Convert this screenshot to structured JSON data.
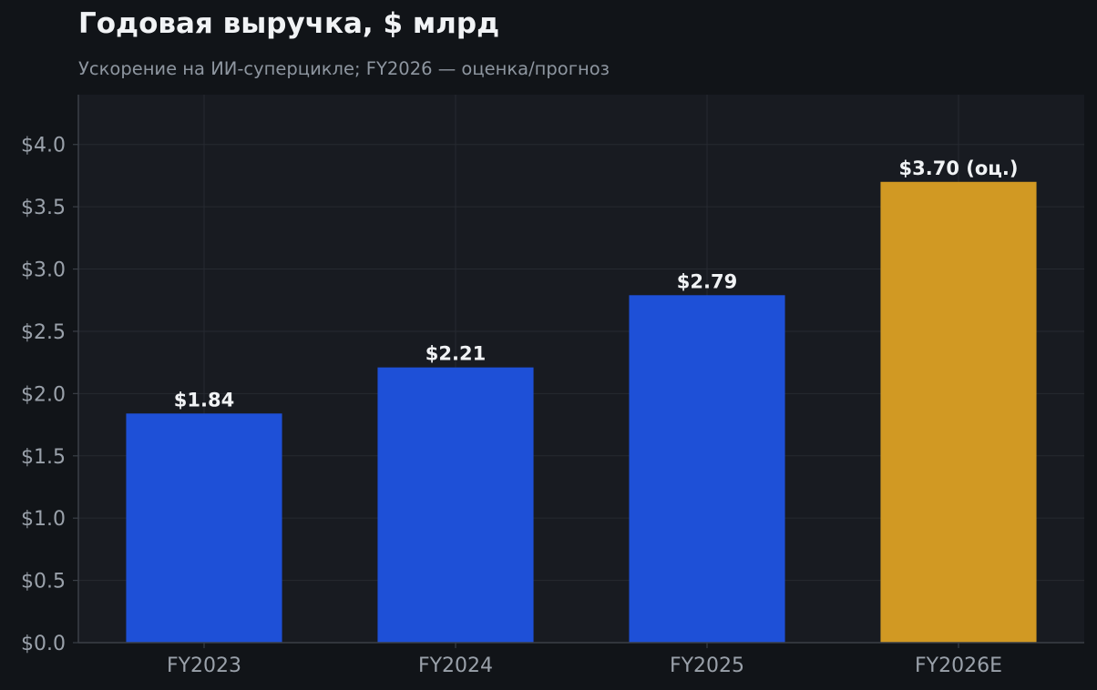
{
  "chart_data": {
    "type": "bar",
    "title": "Годовая выручка, $ млрд",
    "subtitle": "Ускорение на ИИ-суперцикле; FY2026 — оценка/прогноз",
    "xlabel": "",
    "ylabel": "",
    "categories": [
      "FY2023",
      "FY2024",
      "FY2025",
      "FY2026E"
    ],
    "values": [
      1.84,
      2.21,
      2.79,
      3.7
    ],
    "data_labels": [
      "$1.84",
      "$2.21",
      "$2.79",
      "$3.70 (оц.)"
    ],
    "bar_colors": [
      "#1e50d7",
      "#1e50d7",
      "#1e50d7",
      "#d19923"
    ],
    "ylim": [
      0,
      4.4
    ],
    "y_ticks": [
      0,
      0.5,
      1.0,
      1.5,
      2.0,
      2.5,
      3.0,
      3.5,
      4.0
    ],
    "y_tick_labels": [
      "$0.0",
      "$0.5",
      "$1.0",
      "$1.5",
      "$2.0",
      "$2.5",
      "$3.0",
      "$3.5",
      "$4.0"
    ],
    "grid": true,
    "legend": "none"
  },
  "colors": {
    "background": "#111418",
    "plot_background": "#181b21",
    "grid": "#262a31",
    "axis": "#3a3f47",
    "tick_text": "#9aa1aa",
    "label_text": "#f1f3f5"
  }
}
